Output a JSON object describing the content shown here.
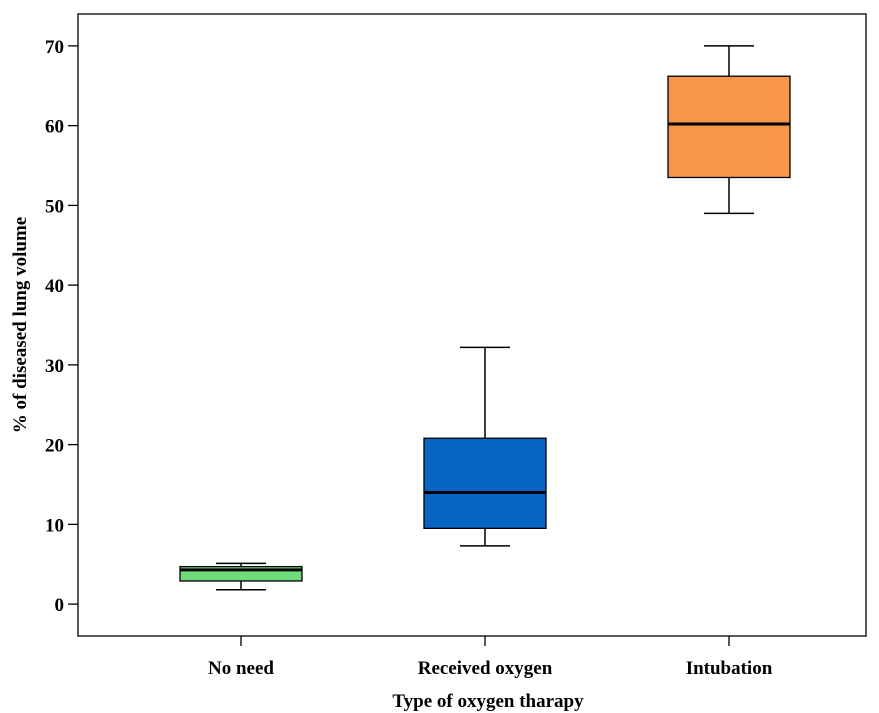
{
  "chart_data": {
    "type": "boxplot",
    "title": "",
    "xlabel": "Type of oxygen tharapy",
    "ylabel": "% of diseased lung volume",
    "ylim": [
      -4,
      74
    ],
    "yticks": [
      0,
      10,
      20,
      30,
      40,
      50,
      60,
      70
    ],
    "ytick_labels": [
      "0",
      "10",
      "20",
      "30",
      "40",
      "50",
      "60",
      "70"
    ],
    "grid": false,
    "legend": "none",
    "categories": [
      "No need",
      "Received oxygen",
      "Intubation"
    ],
    "boxes": [
      {
        "category": "No need",
        "min": 1.8,
        "q1": 2.9,
        "median": 4.3,
        "q3": 4.7,
        "max": 5.1,
        "color": "#6fdc7b"
      },
      {
        "category": "Received oxygen",
        "min": 7.3,
        "q1": 9.5,
        "median": 14.0,
        "q3": 20.8,
        "max": 32.2,
        "color": "#0866c2"
      },
      {
        "category": "Intubation",
        "min": 49.0,
        "q1": 53.5,
        "median": 60.2,
        "q3": 66.2,
        "max": 70.0,
        "color": "#f7964a"
      }
    ]
  }
}
